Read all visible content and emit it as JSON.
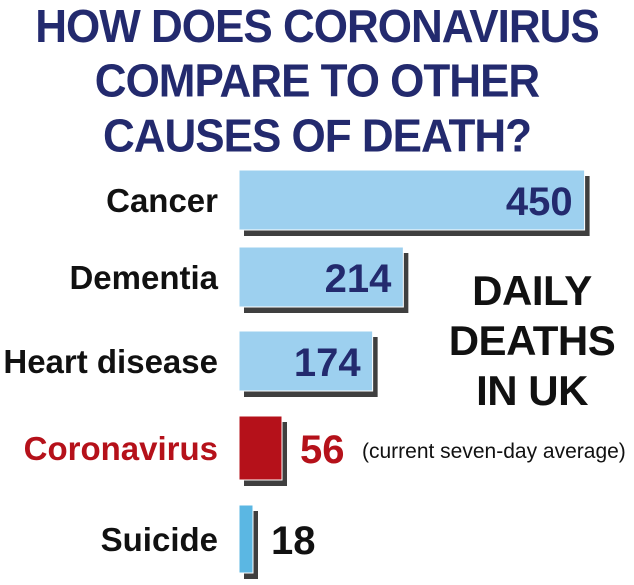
{
  "title_lines": [
    "HOW DOES CORONAVIRUS",
    "COMPARE TO OTHER",
    "CAUSES OF DEATH?"
  ],
  "side_title_lines": [
    "DAILY",
    "DEATHS",
    "IN UK"
  ],
  "colors": {
    "title": "#232a6e",
    "bar": "#9dd0ef",
    "bar_highlight": "#b5111a",
    "suicide_bar": "#5bb7e3",
    "text": "#111111",
    "highlight_text": "#b5111a",
    "value_in_bar": "#232a6e"
  },
  "chart_data": {
    "type": "bar",
    "orientation": "horizontal",
    "title": "HOW DOES CORONAVIRUS COMPARE TO OTHER CAUSES OF DEATH?",
    "categories": [
      "Cancer",
      "Dementia",
      "Heart disease",
      "Coronavirus",
      "Suicide"
    ],
    "values": [
      450,
      214,
      174,
      56,
      18
    ],
    "value_labels": [
      "450",
      "214",
      "174",
      "56",
      "18"
    ],
    "highlight": "Coronavirus",
    "annotations": [
      {
        "category": "Coronavirus",
        "text": "(current seven-day average)"
      }
    ],
    "legend": "DAILY DEATHS IN UK",
    "grid": false
  }
}
